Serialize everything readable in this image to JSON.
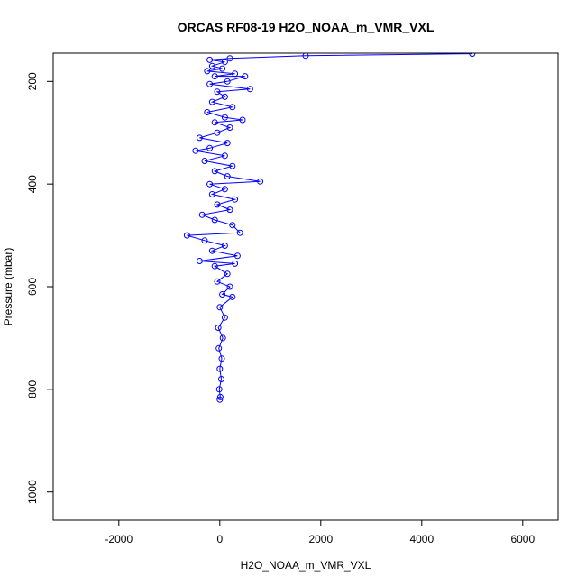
{
  "chart_data": {
    "type": "scatter",
    "title": "ORCAS RF08-19 H2O_NOAA_m_VMR_VXL",
    "xlabel": "H2O_NOAA_m_VMR_VXL",
    "ylabel": "Pressure (mbar)",
    "xlim": [
      -3300,
      6700
    ],
    "ylim": [
      1055,
      145
    ],
    "y_reversed": true,
    "x_ticks": [
      "-2000",
      "0",
      "2000",
      "4000",
      "6000"
    ],
    "y_ticks": [
      "200",
      "400",
      "600",
      "800",
      "1000"
    ],
    "grid": false,
    "legend": "none",
    "marker": "open-circle",
    "connected_line": true,
    "color": "#0000ff",
    "points": [
      [
        5000,
        146
      ],
      [
        1700,
        150
      ],
      [
        200,
        155
      ],
      [
        -200,
        158
      ],
      [
        100,
        162
      ],
      [
        -150,
        170
      ],
      [
        50,
        175
      ],
      [
        -250,
        180
      ],
      [
        300,
        185
      ],
      [
        -100,
        190
      ],
      [
        500,
        190
      ],
      [
        150,
        200
      ],
      [
        -200,
        205
      ],
      [
        600,
        215
      ],
      [
        -50,
        220
      ],
      [
        100,
        230
      ],
      [
        -150,
        240
      ],
      [
        250,
        250
      ],
      [
        -250,
        260
      ],
      [
        100,
        270
      ],
      [
        450,
        275
      ],
      [
        -100,
        280
      ],
      [
        200,
        290
      ],
      [
        -50,
        300
      ],
      [
        -400,
        310
      ],
      [
        150,
        320
      ],
      [
        -200,
        330
      ],
      [
        -480,
        335
      ],
      [
        100,
        345
      ],
      [
        -300,
        355
      ],
      [
        250,
        365
      ],
      [
        -100,
        375
      ],
      [
        150,
        385
      ],
      [
        800,
        395
      ],
      [
        -200,
        400
      ],
      [
        100,
        410
      ],
      [
        -150,
        420
      ],
      [
        300,
        430
      ],
      [
        -50,
        440
      ],
      [
        200,
        450
      ],
      [
        -350,
        460
      ],
      [
        -100,
        470
      ],
      [
        250,
        480
      ],
      [
        400,
        495
      ],
      [
        -650,
        500
      ],
      [
        -300,
        510
      ],
      [
        100,
        520
      ],
      [
        -150,
        530
      ],
      [
        350,
        540
      ],
      [
        -400,
        550
      ],
      [
        300,
        555
      ],
      [
        -100,
        560
      ],
      [
        150,
        575
      ],
      [
        -50,
        590
      ],
      [
        200,
        600
      ],
      [
        50,
        615
      ],
      [
        250,
        620
      ],
      [
        0,
        640
      ],
      [
        100,
        660
      ],
      [
        -30,
        680
      ],
      [
        60,
        700
      ],
      [
        -20,
        720
      ],
      [
        40,
        740
      ],
      [
        0,
        760
      ],
      [
        30,
        780
      ],
      [
        -10,
        800
      ],
      [
        10,
        815
      ],
      [
        0,
        820
      ]
    ]
  }
}
